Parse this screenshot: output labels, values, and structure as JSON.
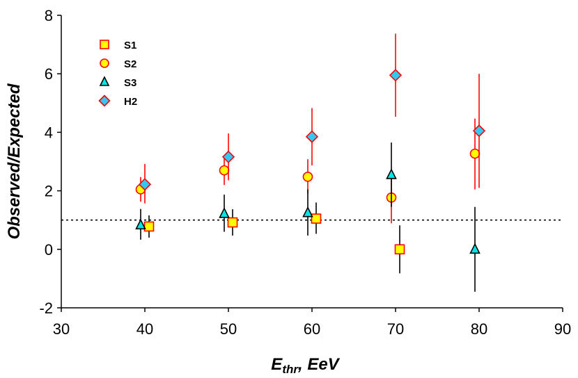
{
  "chart_data": {
    "type": "scatter",
    "title": "",
    "xlabel_main": "E",
    "xlabel_sub": "thr",
    "xlabel_rest": ", EeV",
    "ylabel": "Observed/Expected",
    "xlim": [
      30,
      90
    ],
    "ylim": [
      -2,
      8
    ],
    "xticks": [
      30,
      40,
      50,
      60,
      70,
      80,
      90
    ],
    "yticks": [
      -2,
      0,
      2,
      4,
      6,
      8
    ],
    "reference_line": 1,
    "legend_position": "top-left",
    "series": [
      {
        "name": "S1",
        "marker": "square",
        "fill": "#ffff00",
        "edge": "#ff0000",
        "errcolor": "#000000",
        "x": [
          40.5,
          50.5,
          60.5,
          70.5
        ],
        "y": [
          0.78,
          0.92,
          1.05,
          0.0
        ],
        "yerr_low": [
          0.38,
          0.45,
          0.52,
          0.82
        ],
        "yerr_high": [
          0.38,
          0.45,
          0.55,
          0.82
        ]
      },
      {
        "name": "S2",
        "marker": "circle",
        "fill": "#ffff00",
        "edge": "#ff0000",
        "errcolor": "#ff0000",
        "x": [
          39.5,
          49.5,
          59.5,
          69.5,
          79.5
        ],
        "y": [
          2.05,
          2.7,
          2.48,
          1.77,
          3.27
        ],
        "yerr_low": [
          0.42,
          0.5,
          0.58,
          0.88,
          1.22
        ],
        "yerr_high": [
          0.42,
          0.5,
          0.6,
          0.88,
          1.2
        ]
      },
      {
        "name": "S3",
        "marker": "triangle",
        "fill": "#00e5e5",
        "edge": "#000000",
        "errcolor": "#000000",
        "x": [
          39.5,
          49.5,
          59.5,
          69.5,
          79.5
        ],
        "y": [
          0.83,
          1.22,
          1.25,
          2.55,
          0.0
        ],
        "yerr_low": [
          0.5,
          0.62,
          0.78,
          1.1,
          1.45
        ],
        "yerr_high": [
          0.55,
          0.65,
          0.8,
          1.1,
          1.45
        ]
      },
      {
        "name": "H2",
        "marker": "diamond",
        "fill": "#33c8f0",
        "edge": "#ff0000",
        "errcolor": "#ff0000",
        "x": [
          40.0,
          50.0,
          60.0,
          70.0,
          80.0
        ],
        "y": [
          2.22,
          3.16,
          3.85,
          5.95,
          4.05
        ],
        "yerr_low": [
          0.65,
          0.8,
          0.98,
          1.42,
          1.95
        ],
        "yerr_high": [
          0.7,
          0.8,
          0.98,
          1.42,
          1.95
        ]
      }
    ]
  }
}
